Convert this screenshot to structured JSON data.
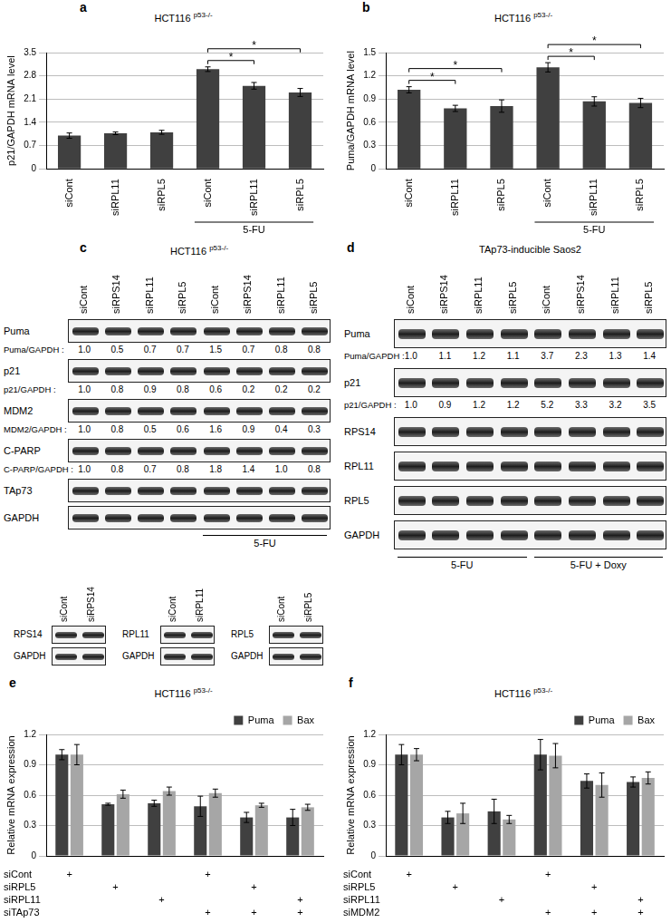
{
  "chart_data": [
    {
      "panel": "a",
      "type": "bar",
      "title": "HCT116",
      "title_superscript": "p53-/-",
      "y_label": "p21/GAPDH mRNA level",
      "categories": [
        "siCont",
        "siRPL11",
        "siRPL5",
        "siCont",
        "siRPL11",
        "siRPL5"
      ],
      "values": [
        1.0,
        1.07,
        1.1,
        3.0,
        2.5,
        2.3
      ],
      "errors": [
        0.08,
        0.04,
        0.06,
        0.07,
        0.1,
        0.12
      ],
      "color": "#404040",
      "ylim": [
        0,
        3.5
      ],
      "yticks": [
        0,
        0.7,
        1.4,
        2.1,
        2.8,
        3.5
      ],
      "grid": true,
      "groups": [
        {
          "label": "5-FU",
          "from": 3,
          "to": 5
        }
      ],
      "significance": [
        {
          "from": 3,
          "to": 4,
          "label": "*"
        },
        {
          "from": 3,
          "to": 5,
          "label": "*"
        }
      ]
    },
    {
      "panel": "b",
      "type": "bar",
      "title": "HCT116",
      "title_superscript": "p53-/-",
      "y_label": "Puma/GAPDH mRNA level",
      "categories": [
        "siCont",
        "siRPL11",
        "siRPL5",
        "siCont",
        "siRPL11",
        "siRPL5"
      ],
      "values": [
        1.02,
        0.78,
        0.81,
        1.31,
        0.87,
        0.85
      ],
      "errors": [
        0.04,
        0.04,
        0.08,
        0.06,
        0.06,
        0.06
      ],
      "color": "#404040",
      "ylim": [
        0,
        1.5
      ],
      "yticks": [
        0,
        0.3,
        0.6,
        0.9,
        1.2,
        1.5
      ],
      "grid": true,
      "groups": [
        {
          "label": "5-FU",
          "from": 3,
          "to": 5
        }
      ],
      "significance": [
        {
          "from": 0,
          "to": 1,
          "label": "*"
        },
        {
          "from": 0,
          "to": 2,
          "label": "*"
        },
        {
          "from": 3,
          "to": 4,
          "label": "*"
        },
        {
          "from": 3,
          "to": 5,
          "label": "*"
        }
      ]
    },
    {
      "panel": "e",
      "type": "bar",
      "title": "HCT116",
      "title_superscript": "p53-/-",
      "y_label": "Relative mRNA expression",
      "categories": [
        null,
        null,
        null,
        null,
        null,
        null
      ],
      "series": [
        {
          "name": "Puma",
          "color": "#404040",
          "values": [
            1.0,
            0.51,
            0.52,
            0.49,
            0.38,
            0.38
          ],
          "errors": [
            0.05,
            0.01,
            0.03,
            0.1,
            0.05,
            0.08
          ]
        },
        {
          "name": "Bax",
          "color": "#a6a6a6",
          "values": [
            1.0,
            0.61,
            0.64,
            0.62,
            0.5,
            0.48
          ],
          "errors": [
            0.1,
            0.04,
            0.04,
            0.04,
            0.02,
            0.03
          ]
        }
      ],
      "ylim": [
        0,
        1.2
      ],
      "yticks": [
        0,
        0.3,
        0.6,
        0.9,
        1.2
      ],
      "grid": true,
      "legend": "top-right",
      "treatment_symbol": "+",
      "treatments": [
        {
          "name": "siCont",
          "present": [
            true,
            false,
            false,
            true,
            false,
            false
          ]
        },
        {
          "name": "siRPL5",
          "present": [
            false,
            true,
            false,
            false,
            true,
            false
          ]
        },
        {
          "name": "siRPL11",
          "present": [
            false,
            false,
            true,
            false,
            false,
            true
          ]
        },
        {
          "name": "siTAp73",
          "present": [
            false,
            false,
            false,
            true,
            true,
            true
          ]
        }
      ]
    },
    {
      "panel": "f",
      "type": "bar",
      "title": "HCT116",
      "title_superscript": "p53-/-",
      "y_label": "Relative mRNA expression",
      "categories": [
        null,
        null,
        null,
        null,
        null,
        null
      ],
      "series": [
        {
          "name": "Puma",
          "color": "#404040",
          "values": [
            1.0,
            0.38,
            0.44,
            1.0,
            0.74,
            0.73
          ],
          "errors": [
            0.1,
            0.06,
            0.12,
            0.15,
            0.07,
            0.05
          ]
        },
        {
          "name": "Bax",
          "color": "#a6a6a6",
          "values": [
            1.0,
            0.42,
            0.36,
            0.99,
            0.7,
            0.77
          ],
          "errors": [
            0.06,
            0.1,
            0.04,
            0.12,
            0.12,
            0.06
          ]
        }
      ],
      "ylim": [
        0,
        1.2
      ],
      "yticks": [
        0,
        0.3,
        0.6,
        0.9,
        1.2
      ],
      "grid": true,
      "legend": "top-right",
      "treatment_symbol": "+",
      "treatments": [
        {
          "name": "siCont",
          "present": [
            true,
            false,
            false,
            true,
            false,
            false
          ]
        },
        {
          "name": "siRPL5",
          "present": [
            false,
            true,
            false,
            false,
            true,
            false
          ]
        },
        {
          "name": "siRPL11",
          "present": [
            false,
            false,
            true,
            false,
            false,
            true
          ]
        },
        {
          "name": "siMDM2",
          "present": [
            false,
            false,
            false,
            true,
            true,
            true
          ]
        }
      ]
    }
  ],
  "blots": [
    {
      "panel": "c",
      "title": "HCT116",
      "title_superscript": "p53-/-",
      "lanes": [
        "siCont",
        "siRPS14",
        "siRPL11",
        "siRPL5",
        "siCont",
        "siRPS14",
        "siRPL11",
        "siRPL5"
      ],
      "rows": [
        {
          "name": "Puma",
          "ratio": {
            "label": "Puma/GAPDH :",
            "values": [
              "1.0",
              "0.5",
              "0.7",
              "0.7",
              "1.5",
              "0.7",
              "0.8",
              "0.8"
            ]
          }
        },
        {
          "name": "p21",
          "ratio": {
            "label": "p21/GAPDH :",
            "values": [
              "1.0",
              "0.8",
              "0.9",
              "0.8",
              "0.6",
              "0.2",
              "0.2",
              "0.2"
            ]
          }
        },
        {
          "name": "MDM2",
          "ratio": {
            "label": "MDM2/GAPDH :",
            "values": [
              "1.0",
              "0.8",
              "0.5",
              "0.6",
              "1.6",
              "0.9",
              "0.4",
              "0.3"
            ]
          }
        },
        {
          "name": "C-PARP",
          "ratio": {
            "label": "C-PARP/GAPDH :",
            "values": [
              "1.0",
              "0.8",
              "0.7",
              "0.8",
              "1.8",
              "1.4",
              "1.0",
              "0.8"
            ]
          }
        },
        {
          "name": "TAp73"
        },
        {
          "name": "GAPDH"
        }
      ],
      "groups": [
        {
          "label": "5-FU",
          "from": 4,
          "to": 7
        }
      ],
      "insets": [
        {
          "lanes": [
            "siCont",
            "siRPS14"
          ],
          "rows": [
            {
              "name": "RPS14"
            },
            {
              "name": "GAPDH"
            }
          ]
        },
        {
          "lanes": [
            "siCont",
            "siRPL11"
          ],
          "rows": [
            {
              "name": "RPL11"
            },
            {
              "name": "GAPDH"
            }
          ]
        },
        {
          "lanes": [
            "siCont",
            "siRPL5"
          ],
          "rows": [
            {
              "name": "RPL5"
            },
            {
              "name": "GAPDH"
            }
          ]
        }
      ]
    },
    {
      "panel": "d",
      "title": "TAp73-inducible Saos2",
      "lanes": [
        "siCont",
        "siRPS14",
        "siRPL11",
        "siRPL5",
        "siCont",
        "siRPS14",
        "siRPL11",
        "siRPL5"
      ],
      "rows": [
        {
          "name": "Puma",
          "ratio": {
            "label": "Puma/GAPDH :",
            "values": [
              "1.0",
              "1.1",
              "1.2",
              "1.1",
              "3.7",
              "2.3",
              "1.3",
              "1.4"
            ]
          }
        },
        {
          "name": "p21",
          "ratio": {
            "label": "p21/GAPDH :",
            "values": [
              "1.0",
              "0.9",
              "1.2",
              "1.2",
              "5.2",
              "3.3",
              "3.2",
              "3.5"
            ]
          }
        },
        {
          "name": "RPS14"
        },
        {
          "name": "RPL11"
        },
        {
          "name": "RPL5"
        },
        {
          "name": "GAPDH"
        }
      ],
      "groups": [
        {
          "label": "5-FU",
          "from": 0,
          "to": 3
        },
        {
          "label": "5-FU + Doxy",
          "from": 4,
          "to": 7
        }
      ]
    }
  ]
}
